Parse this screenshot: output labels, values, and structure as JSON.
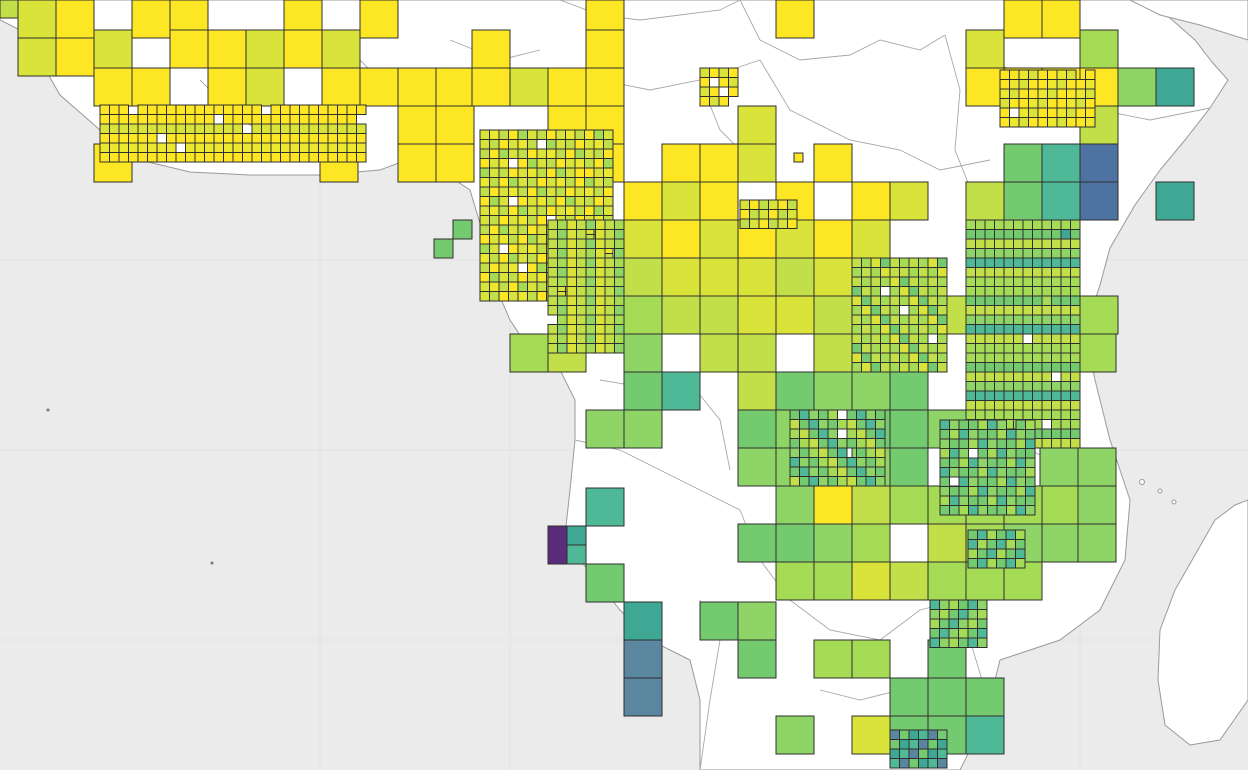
{
  "map": {
    "colors": {
      "ocean": "#ebebeb",
      "land": "#ffffff",
      "cell_outline": "#2f2f2f",
      "palette": [
        "#440154",
        "#3b528b",
        "#21918c",
        "#5ec962",
        "#a0da39",
        "#fde725"
      ]
    },
    "scale": "viridis",
    "features": [
      "graticule",
      "coastline",
      "country-borders",
      "quadtree-grid-cells"
    ]
  }
}
